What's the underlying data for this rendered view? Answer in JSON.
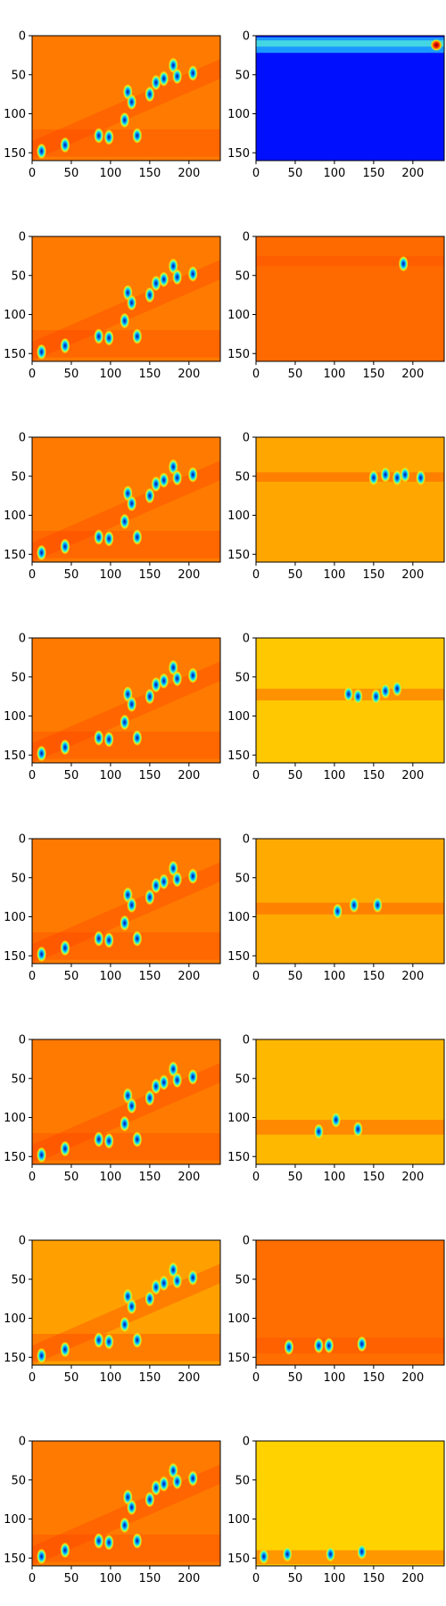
{
  "chart_data": {
    "type": "heatmap",
    "title": "",
    "colormap": "jet",
    "layout": {
      "rows": 8,
      "cols": 2
    },
    "image_shape": [
      160,
      240
    ],
    "xlim": [
      0,
      240
    ],
    "ylim": [
      160,
      0
    ],
    "x_ticks": [
      0,
      50,
      100,
      150,
      200
    ],
    "y_ticks": [
      0,
      50,
      100,
      150
    ],
    "x_tick_labels": [
      "0",
      "50",
      "100",
      "150",
      "200"
    ],
    "y_tick_labels": [
      "0",
      "50",
      "100",
      "150"
    ],
    "panels": [
      {
        "row": 0,
        "col": 0,
        "name": "composite-1",
        "background": "#ff7a00",
        "band": [
          120,
          155
        ],
        "blobs": [
          [
            12,
            148
          ],
          [
            42,
            140
          ],
          [
            85,
            128
          ],
          [
            98,
            130
          ],
          [
            118,
            108
          ],
          [
            134,
            128
          ],
          [
            122,
            72
          ],
          [
            127,
            85
          ],
          [
            150,
            75
          ],
          [
            158,
            60
          ],
          [
            168,
            55
          ],
          [
            180,
            38
          ],
          [
            185,
            52
          ],
          [
            205,
            48
          ]
        ]
      },
      {
        "row": 0,
        "col": 1,
        "name": "band-0",
        "background": "#0010ff",
        "band": [
          2,
          22
        ],
        "highlight": [
          230,
          12
        ]
      },
      {
        "row": 1,
        "col": 0,
        "name": "composite-2",
        "background": "#ff7a00",
        "band": [
          120,
          155
        ],
        "blobs": [
          [
            12,
            148
          ],
          [
            42,
            140
          ],
          [
            85,
            128
          ],
          [
            98,
            130
          ],
          [
            118,
            108
          ],
          [
            134,
            128
          ],
          [
            122,
            72
          ],
          [
            127,
            85
          ],
          [
            150,
            75
          ],
          [
            158,
            60
          ],
          [
            168,
            55
          ],
          [
            180,
            38
          ],
          [
            185,
            52
          ],
          [
            205,
            48
          ]
        ]
      },
      {
        "row": 1,
        "col": 1,
        "name": "band-1",
        "background": "#ff6a00",
        "band": [
          25,
          38
        ],
        "blobs": [
          [
            188,
            35
          ]
        ]
      },
      {
        "row": 2,
        "col": 0,
        "name": "composite-3",
        "background": "#ff7a00",
        "band": [
          120,
          155
        ],
        "blobs": [
          [
            12,
            148
          ],
          [
            42,
            140
          ],
          [
            85,
            128
          ],
          [
            98,
            130
          ],
          [
            118,
            108
          ],
          [
            134,
            128
          ],
          [
            122,
            72
          ],
          [
            127,
            85
          ],
          [
            150,
            75
          ],
          [
            158,
            60
          ],
          [
            168,
            55
          ],
          [
            180,
            38
          ],
          [
            185,
            52
          ],
          [
            205,
            48
          ]
        ]
      },
      {
        "row": 2,
        "col": 1,
        "name": "band-2",
        "background": "#ffa600",
        "band": [
          45,
          57
        ],
        "blobs": [
          [
            150,
            52
          ],
          [
            165,
            48
          ],
          [
            180,
            52
          ],
          [
            190,
            48
          ],
          [
            210,
            52
          ]
        ]
      },
      {
        "row": 3,
        "col": 0,
        "name": "composite-4",
        "background": "#ff7a00",
        "band": [
          120,
          155
        ],
        "blobs": [
          [
            12,
            148
          ],
          [
            42,
            140
          ],
          [
            85,
            128
          ],
          [
            98,
            130
          ],
          [
            118,
            108
          ],
          [
            134,
            128
          ],
          [
            122,
            72
          ],
          [
            127,
            85
          ],
          [
            150,
            75
          ],
          [
            158,
            60
          ],
          [
            168,
            55
          ],
          [
            180,
            38
          ],
          [
            185,
            52
          ],
          [
            205,
            48
          ]
        ]
      },
      {
        "row": 3,
        "col": 1,
        "name": "band-3",
        "background": "#ffc800",
        "band": [
          65,
          80
        ],
        "blobs": [
          [
            118,
            72
          ],
          [
            130,
            75
          ],
          [
            153,
            75
          ],
          [
            165,
            68
          ],
          [
            180,
            65
          ]
        ]
      },
      {
        "row": 4,
        "col": 0,
        "name": "composite-5",
        "background": "#ff7a00",
        "band": [
          120,
          155
        ],
        "blobs": [
          [
            12,
            148
          ],
          [
            42,
            140
          ],
          [
            85,
            128
          ],
          [
            98,
            130
          ],
          [
            118,
            108
          ],
          [
            134,
            128
          ],
          [
            122,
            72
          ],
          [
            127,
            85
          ],
          [
            150,
            75
          ],
          [
            158,
            60
          ],
          [
            168,
            55
          ],
          [
            180,
            38
          ],
          [
            185,
            52
          ],
          [
            205,
            48
          ]
        ]
      },
      {
        "row": 4,
        "col": 1,
        "name": "band-4",
        "background": "#ffaa00",
        "band": [
          82,
          97
        ],
        "blobs": [
          [
            104,
            93
          ],
          [
            125,
            85
          ],
          [
            155,
            85
          ]
        ]
      },
      {
        "row": 5,
        "col": 0,
        "name": "composite-6",
        "background": "#ff7a00",
        "band": [
          120,
          155
        ],
        "blobs": [
          [
            12,
            148
          ],
          [
            42,
            140
          ],
          [
            85,
            128
          ],
          [
            98,
            130
          ],
          [
            118,
            108
          ],
          [
            134,
            128
          ],
          [
            122,
            72
          ],
          [
            127,
            85
          ],
          [
            150,
            75
          ],
          [
            158,
            60
          ],
          [
            168,
            55
          ],
          [
            180,
            38
          ],
          [
            185,
            52
          ],
          [
            205,
            48
          ]
        ]
      },
      {
        "row": 5,
        "col": 1,
        "name": "band-5",
        "background": "#ffb800",
        "band": [
          103,
          122
        ],
        "blobs": [
          [
            130,
            115
          ],
          [
            102,
            103
          ],
          [
            80,
            118
          ]
        ]
      },
      {
        "row": 6,
        "col": 0,
        "name": "composite-7",
        "background": "#ffa000",
        "band": [
          120,
          155
        ],
        "blobs": [
          [
            12,
            148
          ],
          [
            42,
            140
          ],
          [
            85,
            128
          ],
          [
            98,
            130
          ],
          [
            118,
            108
          ],
          [
            134,
            128
          ],
          [
            122,
            72
          ],
          [
            127,
            85
          ],
          [
            150,
            75
          ],
          [
            158,
            60
          ],
          [
            168,
            55
          ],
          [
            180,
            38
          ],
          [
            185,
            52
          ],
          [
            205,
            48
          ]
        ]
      },
      {
        "row": 6,
        "col": 1,
        "name": "band-6",
        "background": "#ff6e00",
        "band": [
          125,
          145
        ],
        "blobs": [
          [
            42,
            137
          ],
          [
            80,
            135
          ],
          [
            93,
            135
          ],
          [
            135,
            133
          ]
        ]
      },
      {
        "row": 7,
        "col": 0,
        "name": "composite-8",
        "background": "#ff7a00",
        "band": [
          120,
          155
        ],
        "blobs": [
          [
            12,
            148
          ],
          [
            42,
            140
          ],
          [
            85,
            128
          ],
          [
            98,
            130
          ],
          [
            118,
            108
          ],
          [
            134,
            128
          ],
          [
            122,
            72
          ],
          [
            127,
            85
          ],
          [
            150,
            75
          ],
          [
            158,
            60
          ],
          [
            168,
            55
          ],
          [
            180,
            38
          ],
          [
            185,
            52
          ],
          [
            205,
            48
          ]
        ]
      },
      {
        "row": 7,
        "col": 1,
        "name": "band-7",
        "background": "#ffd200",
        "band": [
          140,
          158
        ],
        "blobs": [
          [
            10,
            148
          ],
          [
            40,
            145
          ],
          [
            95,
            145
          ],
          [
            135,
            142
          ]
        ]
      }
    ]
  }
}
